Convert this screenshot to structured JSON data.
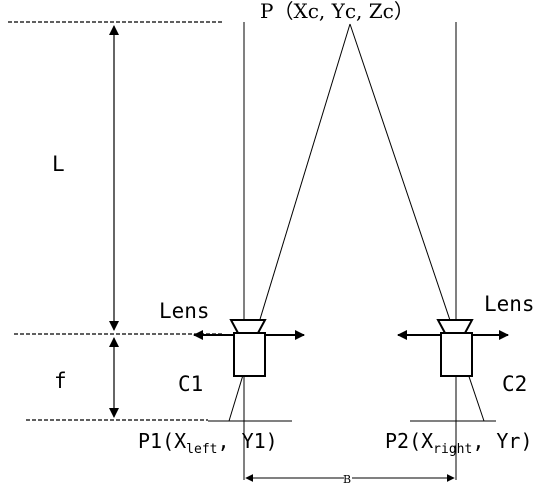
{
  "labels": {
    "point_p": "P（Xc, Yc, Zc）",
    "distance_l": "L",
    "focal_f": "f",
    "lens_left": "Lens",
    "lens_right": "Lens",
    "camera_left": "C1",
    "camera_right": "C2",
    "p1_prefix": "P1(X",
    "p1_sub": "left",
    "p1_suffix": ", Y1)",
    "p2_prefix": "P2(X",
    "p2_sub": "right",
    "p2_suffix": ", Yr)",
    "baseline_b": "B"
  }
}
